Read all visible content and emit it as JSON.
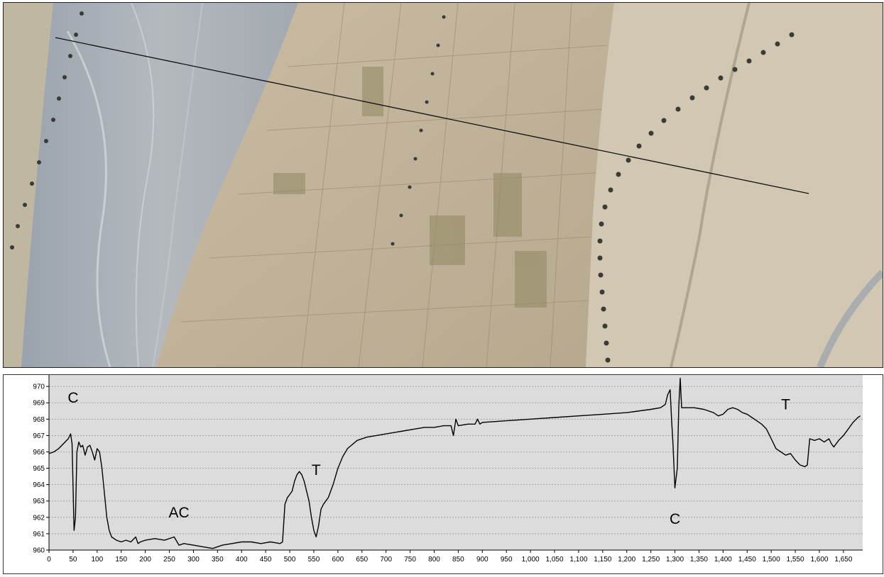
{
  "chart_data": {
    "type": "line",
    "xlim": [
      0,
      1690
    ],
    "ylim": [
      960,
      970.7
    ],
    "x_ticks": [
      0,
      50,
      100,
      150,
      200,
      250,
      300,
      350,
      400,
      450,
      500,
      550,
      600,
      650,
      700,
      750,
      800,
      850,
      900,
      950,
      1000,
      1050,
      1100,
      1150,
      1200,
      1250,
      1300,
      1350,
      1400,
      1450,
      1500,
      1550,
      1600,
      1650
    ],
    "x_tick_labels": [
      "0",
      "50",
      "100",
      "150",
      "200",
      "250",
      "300",
      "350",
      "400",
      "450",
      "500",
      "550",
      "600",
      "650",
      "700",
      "750",
      "800",
      "850",
      "900",
      "950",
      "1,000",
      "1,050",
      "1,100",
      "1,150",
      "1,200",
      "1,250",
      "1,300",
      "1,350",
      "1,400",
      "1,450",
      "1,500",
      "1,550",
      "1,600",
      "1,650"
    ],
    "y_ticks": [
      960,
      961,
      962,
      963,
      964,
      965,
      966,
      967,
      968,
      969,
      970
    ],
    "y_tick_labels": [
      "960",
      "961",
      "962",
      "963",
      "964",
      "965",
      "966",
      "967",
      "968",
      "969",
      "970"
    ],
    "grid": "horizontal-dashed",
    "background": "#dcdcdc",
    "line_color": "#000000",
    "x": [
      0,
      10,
      20,
      30,
      40,
      45,
      48,
      52,
      55,
      58,
      62,
      66,
      70,
      75,
      80,
      85,
      90,
      95,
      100,
      105,
      110,
      115,
      120,
      125,
      130,
      140,
      150,
      160,
      170,
      180,
      185,
      190,
      200,
      220,
      240,
      260,
      270,
      280,
      300,
      320,
      340,
      360,
      380,
      400,
      420,
      440,
      460,
      480,
      485,
      490,
      495,
      500,
      505,
      510,
      515,
      520,
      525,
      530,
      535,
      540,
      545,
      550,
      555,
      560,
      565,
      570,
      580,
      590,
      600,
      610,
      620,
      640,
      660,
      680,
      700,
      720,
      740,
      760,
      780,
      800,
      820,
      835,
      840,
      845,
      850,
      870,
      885,
      890,
      895,
      900,
      950,
      1000,
      1050,
      1100,
      1150,
      1200,
      1250,
      1270,
      1280,
      1285,
      1290,
      1293,
      1296,
      1300,
      1305,
      1308,
      1311,
      1314,
      1320,
      1340,
      1360,
      1380,
      1390,
      1400,
      1410,
      1420,
      1430,
      1440,
      1450,
      1460,
      1470,
      1480,
      1490,
      1500,
      1510,
      1520,
      1530,
      1540,
      1550,
      1560,
      1570,
      1575,
      1580,
      1590,
      1600,
      1610,
      1620,
      1625,
      1630,
      1640,
      1650,
      1660,
      1670,
      1680,
      1685
    ],
    "y": [
      965.9,
      966.0,
      966.2,
      966.5,
      966.8,
      967.1,
      966.5,
      961.2,
      962.0,
      966.0,
      966.6,
      966.3,
      966.4,
      965.8,
      966.3,
      966.4,
      966.0,
      965.5,
      966.2,
      966.0,
      965.0,
      963.5,
      962.0,
      961.2,
      960.8,
      960.6,
      960.5,
      960.6,
      960.5,
      960.8,
      960.4,
      960.5,
      960.6,
      960.7,
      960.6,
      960.8,
      960.3,
      960.4,
      960.3,
      960.2,
      960.1,
      960.3,
      960.4,
      960.5,
      960.5,
      960.4,
      960.5,
      960.4,
      960.5,
      962.8,
      963.2,
      963.4,
      963.6,
      964.2,
      964.6,
      964.8,
      964.6,
      964.2,
      963.6,
      963.0,
      962.0,
      961.2,
      960.8,
      961.5,
      962.5,
      962.8,
      963.2,
      964.0,
      965.0,
      965.7,
      966.2,
      966.7,
      966.9,
      967.0,
      967.1,
      967.2,
      967.3,
      967.4,
      967.5,
      967.5,
      967.6,
      967.6,
      967.0,
      968.0,
      967.6,
      967.7,
      967.7,
      968.0,
      967.7,
      967.8,
      967.9,
      968.0,
      968.1,
      968.2,
      968.3,
      968.4,
      968.6,
      968.7,
      968.9,
      969.5,
      969.8,
      968.0,
      966.5,
      963.8,
      965.0,
      968.8,
      970.5,
      968.7,
      968.7,
      968.7,
      968.6,
      968.4,
      968.2,
      968.3,
      968.6,
      968.7,
      968.6,
      968.4,
      968.3,
      968.1,
      967.9,
      967.7,
      967.4,
      966.8,
      966.2,
      966.0,
      965.8,
      965.9,
      965.5,
      965.2,
      965.1,
      965.2,
      966.8,
      966.7,
      966.8,
      966.6,
      966.8,
      966.5,
      966.3,
      966.7,
      967.0,
      967.4,
      967.8,
      968.1,
      968.2
    ],
    "annotations": [
      {
        "text": "C",
        "x": 50,
        "y": 969.0
      },
      {
        "text": "AC",
        "x": 270,
        "y": 962.0
      },
      {
        "text": "T",
        "x": 555,
        "y": 964.6
      },
      {
        "text": "C",
        "x": 1300,
        "y": 961.6
      },
      {
        "text": "T",
        "x": 1530,
        "y": 968.6
      }
    ]
  }
}
